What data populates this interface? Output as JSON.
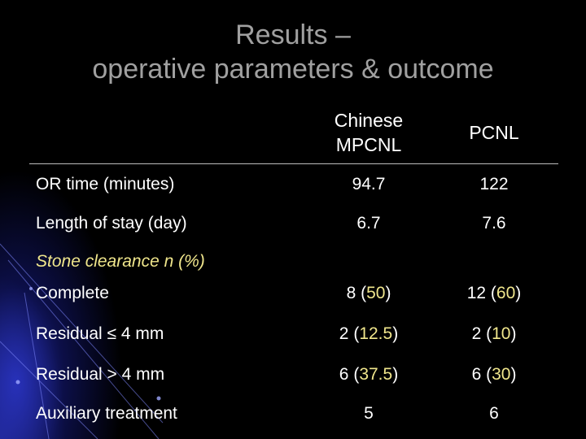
{
  "slide": {
    "title_line1": "Results –",
    "title_line2": "operative parameters & outcome",
    "columns": {
      "chinese_line1": "Chinese",
      "chinese_line2": "MPCNL",
      "pcnl": "PCNL"
    },
    "rows": {
      "or_time": {
        "label": "OR time (minutes)",
        "mpcnl": "94.7",
        "pcnl": "122"
      },
      "length_of_stay": {
        "label": "Length of stay (day)",
        "mpcnl": "6.7",
        "pcnl": "7.6"
      },
      "stone_clearance_header": "Stone clearance n (%)",
      "complete": {
        "label": "Complete",
        "mpcnl_n": "8",
        "mpcnl_pct": "50",
        "pcnl_n": "12",
        "pcnl_pct": "60"
      },
      "residual_le_4": {
        "label": "Residual ≤ 4 mm",
        "mpcnl_n": "2",
        "mpcnl_pct": "12.5",
        "pcnl_n": "2",
        "pcnl_pct": "10"
      },
      "residual_gt_4": {
        "label": "Residual > 4 mm",
        "mpcnl_n": "6",
        "mpcnl_pct": "37.5",
        "pcnl_n": "6",
        "pcnl_pct": "30"
      },
      "auxiliary": {
        "label": "Auxiliary treatment",
        "mpcnl": "5",
        "pcnl": "6"
      }
    },
    "colors": {
      "background": "#000000",
      "title": "#a0a0a0",
      "text": "#ffffff",
      "accent": "#f0e68c",
      "glow": "#2832be"
    }
  }
}
